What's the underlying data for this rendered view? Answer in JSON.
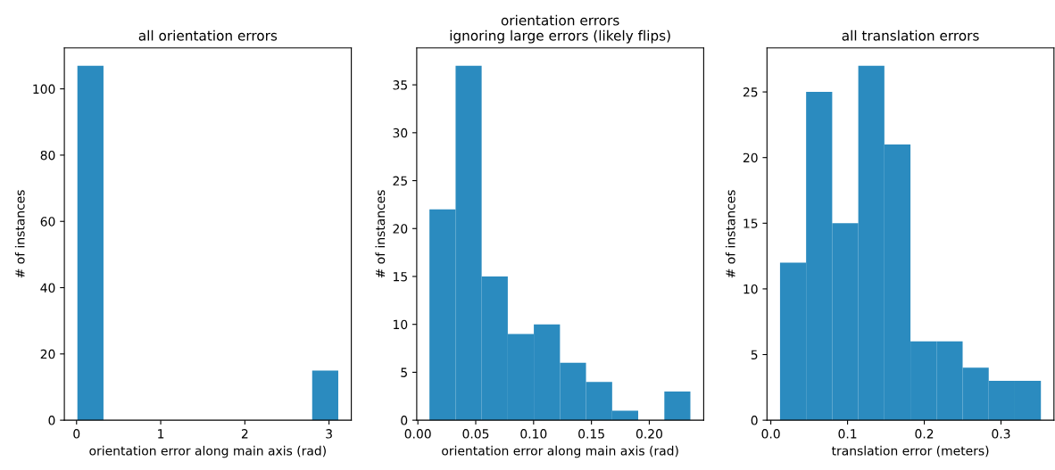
{
  "chart_data": [
    {
      "type": "histogram",
      "title": "all orientation errors",
      "xlabel": "orientation error along main axis (rad)",
      "ylabel": "# of instances",
      "color": "#2b8bbf",
      "bins": [
        0.01,
        0.32,
        0.63,
        0.94,
        1.25,
        1.56,
        1.87,
        2.18,
        2.49,
        2.8,
        3.11
      ],
      "values": [
        107,
        0,
        0,
        0,
        0,
        0,
        0,
        0,
        0,
        15
      ],
      "xlim": [
        -0.145,
        3.265
      ],
      "xticks": [
        0,
        1,
        2,
        3
      ],
      "ylim": [
        0,
        112.35
      ],
      "yticks": [
        0,
        20,
        40,
        60,
        80,
        100
      ],
      "grid": false
    },
    {
      "type": "histogram",
      "title": "orientation errors\nignoring large errors (likely flips)",
      "xlabel": "orientation error along main axis (rad)",
      "ylabel": "# of instances",
      "color": "#2b8bbf",
      "bins": [
        0.01,
        0.0326,
        0.0551,
        0.0777,
        0.1002,
        0.1228,
        0.1453,
        0.1679,
        0.1904,
        0.213,
        0.2355
      ],
      "values": [
        22,
        37,
        15,
        9,
        10,
        6,
        4,
        1,
        0,
        3
      ],
      "xlim": [
        -0.001,
        0.247
      ],
      "xticks": [
        {
          "value": 0,
          "label": "0.00"
        },
        {
          "value": 0.05,
          "label": "0.05"
        },
        {
          "value": 0.1,
          "label": "0.10"
        },
        {
          "value": 0.15,
          "label": "0.15"
        },
        {
          "value": 0.2,
          "label": "0.20"
        }
      ],
      "ylim": [
        0,
        38.85
      ],
      "yticks": [
        0,
        5,
        10,
        15,
        20,
        25,
        30,
        35
      ],
      "grid": false
    },
    {
      "type": "histogram",
      "title": "all translation errors",
      "xlabel": "translation error (meters)",
      "ylabel": "# of instances",
      "color": "#2b8bbf",
      "bins": [
        0.012,
        0.046,
        0.08,
        0.114,
        0.148,
        0.182,
        0.216,
        0.25,
        0.284,
        0.318,
        0.352
      ],
      "values": [
        12,
        25,
        15,
        27,
        21,
        6,
        6,
        4,
        3,
        3
      ],
      "xlim": [
        -0.005,
        0.369
      ],
      "xticks": [
        {
          "value": 0,
          "label": "0.0"
        },
        0.1,
        0.2,
        0.3
      ],
      "ylim": [
        0,
        28.35
      ],
      "yticks": [
        0,
        5,
        10,
        15,
        20,
        25
      ],
      "grid": false
    }
  ]
}
